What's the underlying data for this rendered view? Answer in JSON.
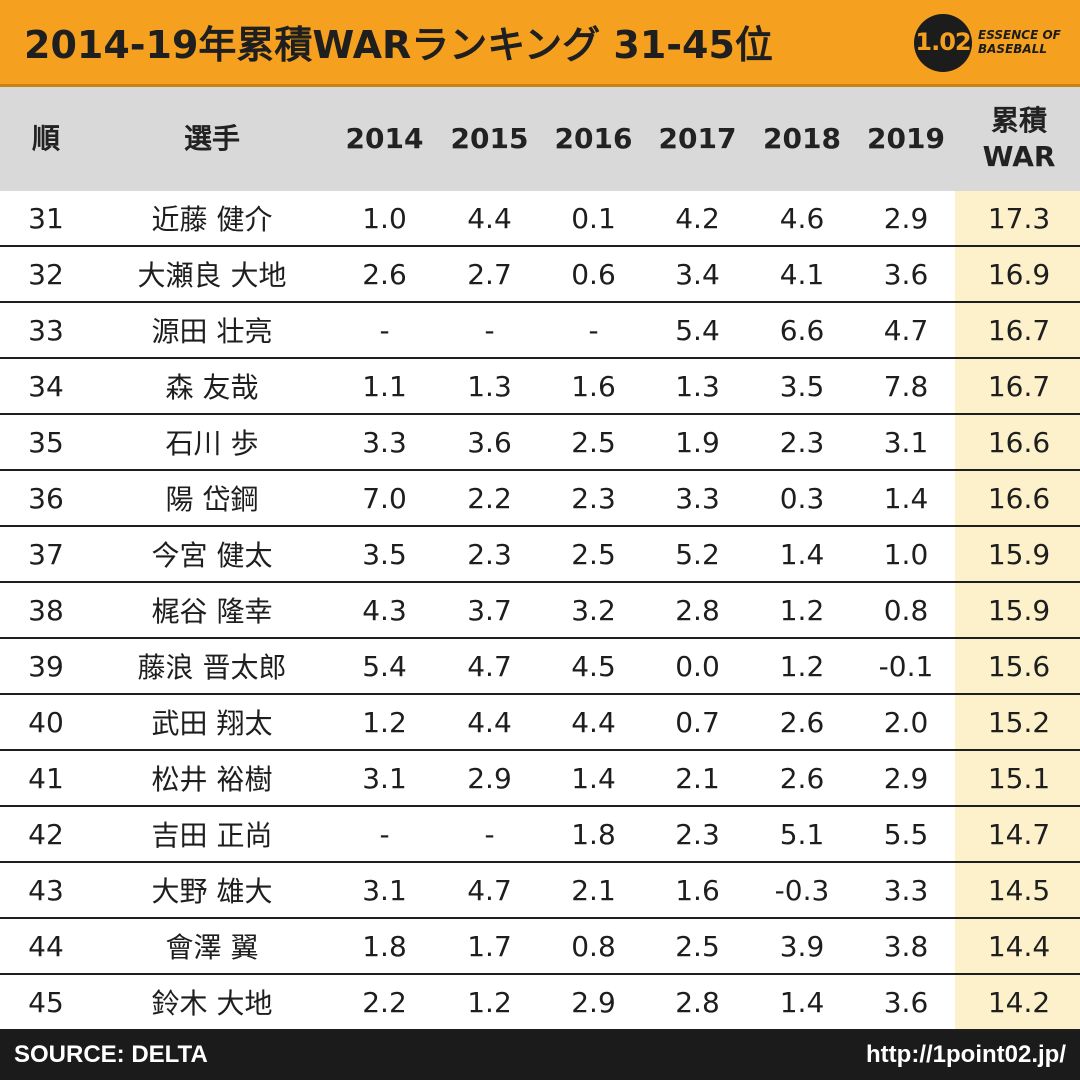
{
  "header": {
    "title": "2014-19年累積WARランキング 31-45位",
    "logo_number": "1.02",
    "logo_line1": "ESSENCE OF",
    "logo_line2": "BASEBALL"
  },
  "chart_data": {
    "type": "table",
    "title": "2014-19年累積WARランキング 31-45位",
    "columns": [
      "順",
      "選手",
      "2014",
      "2015",
      "2016",
      "2017",
      "2018",
      "2019",
      "累積\nWAR"
    ],
    "rows": [
      [
        "31",
        "近藤 健介",
        "1.0",
        "4.4",
        "0.1",
        "4.2",
        "4.6",
        "2.9",
        "17.3"
      ],
      [
        "32",
        "大瀬良 大地",
        "2.6",
        "2.7",
        "0.6",
        "3.4",
        "4.1",
        "3.6",
        "16.9"
      ],
      [
        "33",
        "源田 壮亮",
        "-",
        "-",
        "-",
        "5.4",
        "6.6",
        "4.7",
        "16.7"
      ],
      [
        "34",
        "森 友哉",
        "1.1",
        "1.3",
        "1.6",
        "1.3",
        "3.5",
        "7.8",
        "16.7"
      ],
      [
        "35",
        "石川 歩",
        "3.3",
        "3.6",
        "2.5",
        "1.9",
        "2.3",
        "3.1",
        "16.6"
      ],
      [
        "36",
        "陽 岱鋼",
        "7.0",
        "2.2",
        "2.3",
        "3.3",
        "0.3",
        "1.4",
        "16.6"
      ],
      [
        "37",
        "今宮 健太",
        "3.5",
        "2.3",
        "2.5",
        "5.2",
        "1.4",
        "1.0",
        "15.9"
      ],
      [
        "38",
        "梶谷 隆幸",
        "4.3",
        "3.7",
        "3.2",
        "2.8",
        "1.2",
        "0.8",
        "15.9"
      ],
      [
        "39",
        "藤浪 晋太郎",
        "5.4",
        "4.7",
        "4.5",
        "0.0",
        "1.2",
        "-0.1",
        "15.6"
      ],
      [
        "40",
        "武田 翔太",
        "1.2",
        "4.4",
        "4.4",
        "0.7",
        "2.6",
        "2.0",
        "15.2"
      ],
      [
        "41",
        "松井 裕樹",
        "3.1",
        "2.9",
        "1.4",
        "2.1",
        "2.6",
        "2.9",
        "15.1"
      ],
      [
        "42",
        "吉田 正尚",
        "-",
        "-",
        "1.8",
        "2.3",
        "5.1",
        "5.5",
        "14.7"
      ],
      [
        "43",
        "大野 雄大",
        "3.1",
        "4.7",
        "2.1",
        "1.6",
        "-0.3",
        "3.3",
        "14.5"
      ],
      [
        "44",
        "會澤 翼",
        "1.8",
        "1.7",
        "0.8",
        "2.5",
        "3.9",
        "3.8",
        "14.4"
      ],
      [
        "45",
        "鈴木 大地",
        "2.2",
        "1.2",
        "2.9",
        "2.8",
        "1.4",
        "3.6",
        "14.2"
      ]
    ]
  },
  "footer": {
    "source": "SOURCE: DELTA",
    "url": "http://1point02.jp/"
  },
  "colors": {
    "header_bg": "#f5a11f",
    "table_header_bg": "#d9d9d9",
    "war_column_bg": "#fdf1cc",
    "footer_bg": "#1b1b1b"
  }
}
